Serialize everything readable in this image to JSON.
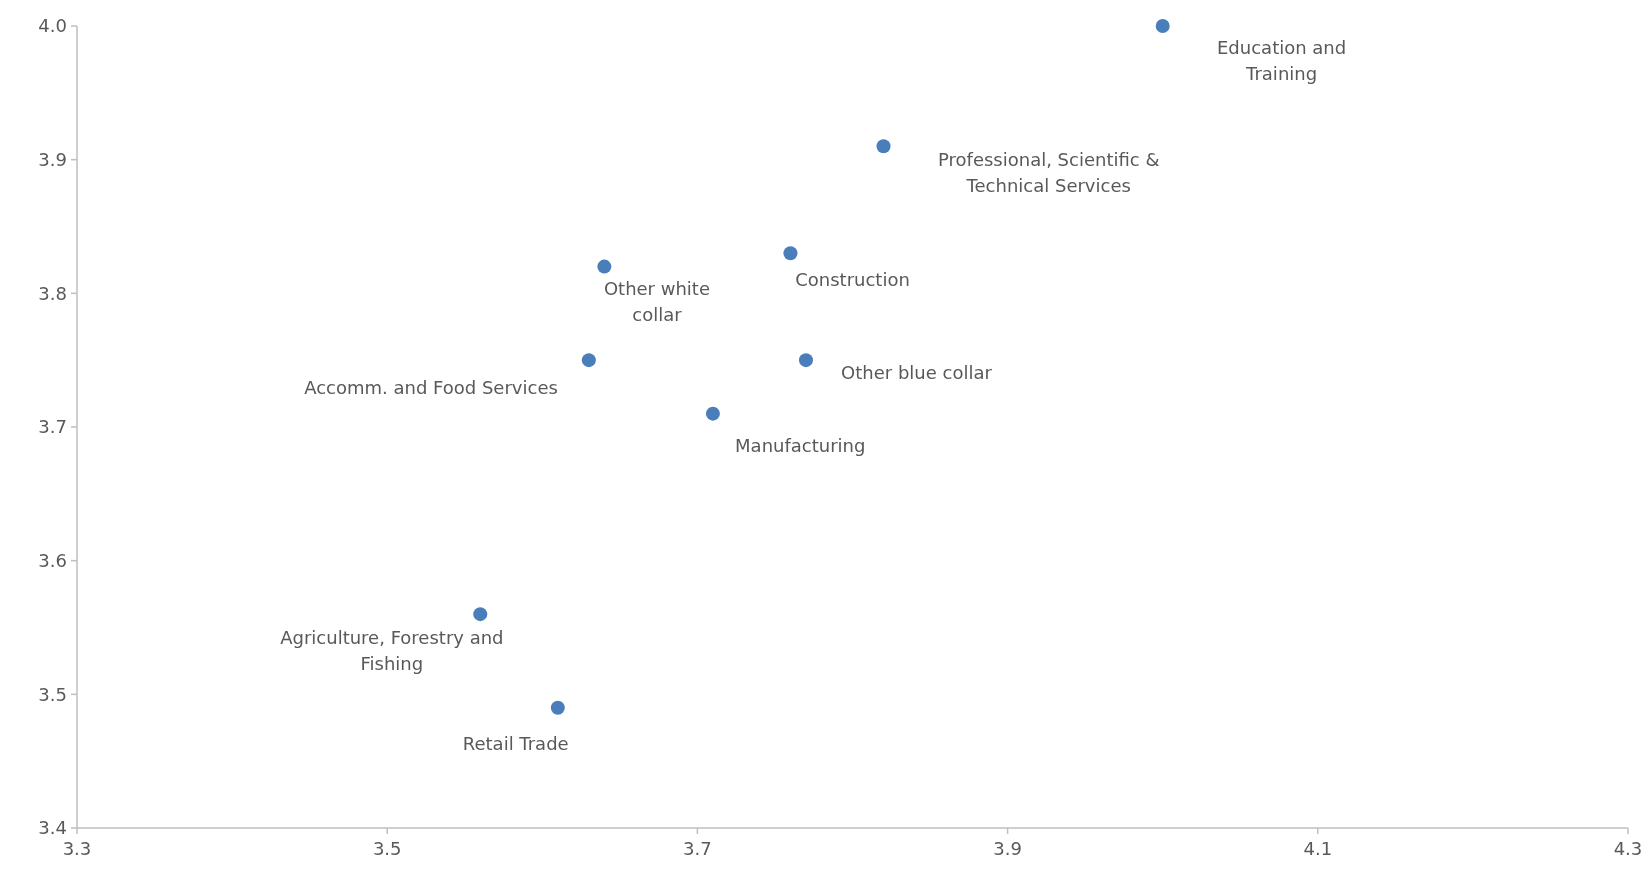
{
  "chart_data": {
    "type": "scatter",
    "marker": "circle",
    "grid": false,
    "xlim": [
      3.3,
      4.3
    ],
    "xticks": [
      3.3,
      3.5,
      3.7,
      3.9,
      4.1,
      4.3
    ],
    "ylim": [
      3.4,
      4.0
    ],
    "yticks": [
      3.4,
      3.5,
      3.6,
      3.7,
      3.8,
      3.9,
      {
        "value": 4,
        "label": "4.0"
      }
    ],
    "series": [
      {
        "color": "#4a7ebb",
        "x": [
          4.0,
          3.82,
          3.64,
          3.76,
          3.63,
          3.77,
          3.71,
          3.56,
          3.61
        ],
        "values": [
          4.0,
          3.91,
          3.82,
          3.83,
          3.75,
          3.75,
          3.71,
          3.56,
          3.49
        ]
      }
    ],
    "annotations": [
      "Education and Training",
      "Professional, Scientific & Technical Services",
      {
        "text": "Other white collar",
        "x": 3.64,
        "y": 3.82
      },
      {
        "text": "Construction",
        "x": 3.76,
        "y": 3.83
      },
      {
        "text": "Accomm. and Food Services",
        "x": 3.63,
        "y": 3.75
      },
      {
        "text": "Other blue collar",
        "x": 3.77,
        "y": 3.75
      },
      {
        "text": "Manufacturing",
        "x": 3.71,
        "y": 3.71
      },
      {
        "text": "Agriculture, Forestry and Fishing",
        "x": 3.56,
        "y": 3.56
      },
      {
        "text": "Retail Trade",
        "x": 3.61,
        "y": 3.49
      }
    ]
  }
}
